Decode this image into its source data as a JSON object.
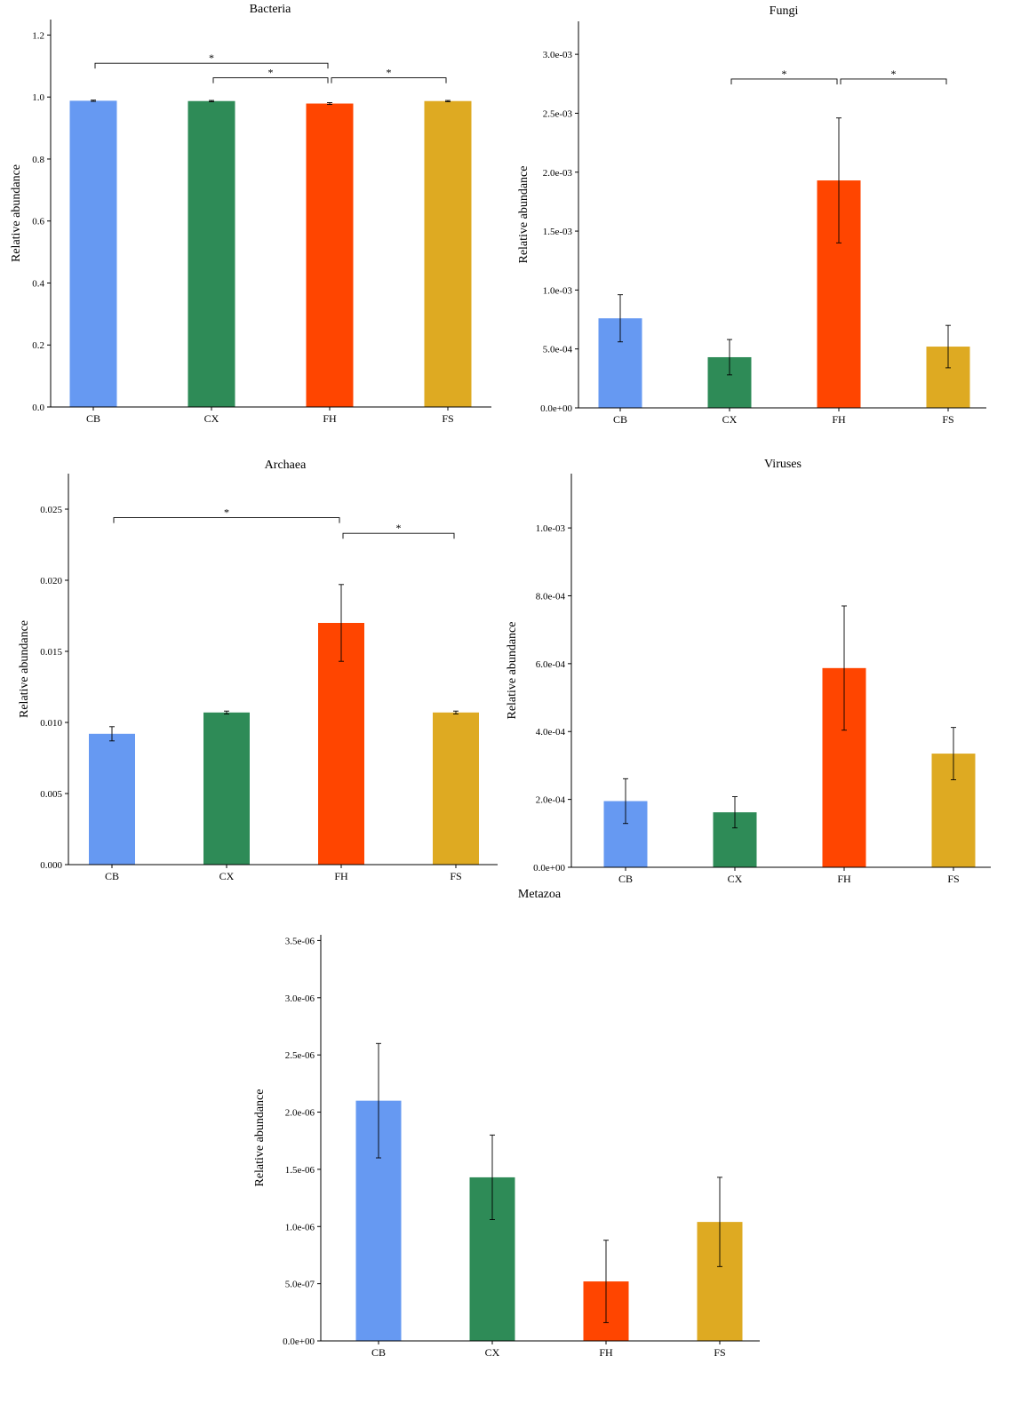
{
  "colors": {
    "CB": "#6699f2",
    "CX": "#2e8b57",
    "FH": "#ff4500",
    "FS": "#deaa22"
  },
  "chart_data": [
    {
      "type": "bar",
      "title": "Bacteria",
      "ylabel": "Relative abundance",
      "categories": [
        "CB",
        "CX",
        "FH",
        "FS"
      ],
      "values": [
        0.988,
        0.987,
        0.979,
        0.987
      ],
      "errors": [
        0.002,
        0.002,
        0.003,
        0.002
      ],
      "ylim": [
        0,
        1.25
      ],
      "yticks": [
        0,
        0.2,
        0.4,
        0.6,
        0.8,
        1.0,
        1.2
      ],
      "ytick_labels": [
        "0.0",
        "0.2",
        "0.4",
        "0.6",
        "0.8",
        "1.0",
        "1.2"
      ],
      "significance": [
        {
          "from": "CB",
          "to": "FH",
          "y": 1.109,
          "label": "*"
        },
        {
          "from": "CX",
          "to": "FH",
          "y": 1.062,
          "label": "*"
        },
        {
          "from": "FH",
          "to": "FS",
          "y": 1.062,
          "label": "*"
        }
      ]
    },
    {
      "type": "bar",
      "title": "Fungi",
      "ylabel": "Relative abundance",
      "categories": [
        "CB",
        "CX",
        "FH",
        "FS"
      ],
      "values": [
        0.00076,
        0.00043,
        0.00193,
        0.00052
      ],
      "errors": [
        0.0002,
        0.00015,
        0.00053,
        0.00018
      ],
      "ylim": [
        0,
        0.00328
      ],
      "yticks": [
        0,
        0.0005,
        0.001,
        0.0015,
        0.002,
        0.0025,
        0.003
      ],
      "ytick_labels": [
        "0.0e+00",
        "5.0e-04",
        "1.0e-03",
        "1.5e-03",
        "2.0e-03",
        "2.5e-03",
        "3.0e-03"
      ],
      "significance": [
        {
          "from": "CX",
          "to": "FH",
          "y": 0.00279,
          "label": "*"
        },
        {
          "from": "FH",
          "to": "FS",
          "y": 0.00279,
          "label": "*"
        }
      ]
    },
    {
      "type": "bar",
      "title": "Archaea",
      "ylabel": "Relative abundance",
      "categories": [
        "CB",
        "CX",
        "FH",
        "FS"
      ],
      "values": [
        0.0092,
        0.0107,
        0.017,
        0.0107
      ],
      "errors": [
        0.0005,
        0.0001,
        0.0027,
        0.0001
      ],
      "ylim": [
        0,
        0.0275
      ],
      "yticks": [
        0,
        0.005,
        0.01,
        0.015,
        0.02,
        0.025
      ],
      "ytick_labels": [
        "0.000",
        "0.005",
        "0.010",
        "0.015",
        "0.020",
        "0.025"
      ],
      "significance": [
        {
          "from": "CB",
          "to": "FH",
          "y": 0.0244,
          "label": "*"
        },
        {
          "from": "FH",
          "to": "FS",
          "y": 0.0233,
          "label": "*"
        }
      ]
    },
    {
      "type": "bar",
      "title": "Viruses",
      "ylabel": "Relative abundance",
      "categories": [
        "CB",
        "CX",
        "FH",
        "FS"
      ],
      "values": [
        0.000195,
        0.000162,
        0.000587,
        0.000335
      ],
      "errors": [
        6.6e-05,
        4.6e-05,
        0.000183,
        7.7e-05
      ],
      "ylim": [
        0,
        0.00116
      ],
      "yticks": [
        0,
        0.0002,
        0.0004,
        0.0006,
        0.0008,
        0.001
      ],
      "ytick_labels": [
        "0.0e+00",
        "2.0e-04",
        "4.0e-04",
        "6.0e-04",
        "8.0e-04",
        "1.0e-03"
      ],
      "significance": []
    },
    {
      "type": "bar",
      "title": "Metazoa",
      "ylabel": "Relative abundance",
      "categories": [
        "CB",
        "CX",
        "FH",
        "FS"
      ],
      "values": [
        2.1e-06,
        1.43e-06,
        5.2e-07,
        1.04e-06
      ],
      "errors": [
        5e-07,
        3.7e-07,
        3.6e-07,
        3.9e-07
      ],
      "ylim": [
        0,
        3.55e-06
      ],
      "yticks": [
        0,
        5e-07,
        1e-06,
        1.5e-06,
        2e-06,
        2.5e-06,
        3e-06,
        3.5e-06
      ],
      "ytick_labels": [
        "0.0e+00",
        "5.0e-07",
        "1.0e-06",
        "1.5e-06",
        "2.0e-06",
        "2.5e-06",
        "3.0e-06",
        "3.5e-06"
      ],
      "significance": []
    }
  ]
}
